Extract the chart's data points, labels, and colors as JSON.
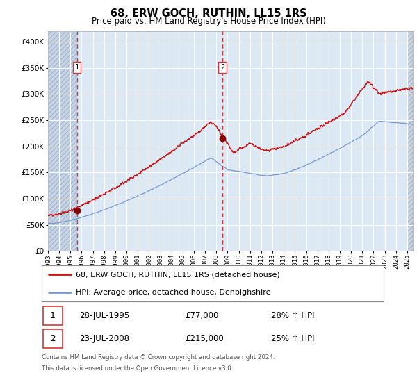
{
  "title": "68, ERW GOCH, RUTHIN, LL15 1RS",
  "subtitle": "Price paid vs. HM Land Registry's House Price Index (HPI)",
  "legend_line1": "68, ERW GOCH, RUTHIN, LL15 1RS (detached house)",
  "legend_line2": "HPI: Average price, detached house, Denbighshire",
  "annotation1_label": "1",
  "annotation1_date": "28-JUL-1995",
  "annotation1_price": "£77,000",
  "annotation1_hpi": "28% ↑ HPI",
  "annotation2_label": "2",
  "annotation2_date": "23-JUL-2008",
  "annotation2_price": "£215,000",
  "annotation2_hpi": "25% ↑ HPI",
  "footnote1": "Contains HM Land Registry data © Crown copyright and database right 2024.",
  "footnote2": "This data is licensed under the Open Government Licence v3.0.",
  "hpi_color": "#7799cc",
  "price_color": "#cc1111",
  "dot_color": "#880000",
  "vline_color": "#dd3333",
  "plot_bg_color": "#dde8f5",
  "hatch_bg_color": "#c8d4e8",
  "grid_color": "#ffffff",
  "ylim": [
    0,
    420000
  ],
  "yticks": [
    0,
    50000,
    100000,
    150000,
    200000,
    250000,
    300000,
    350000,
    400000
  ],
  "sale1_x": 1995.57,
  "sale1_y": 77000,
  "sale2_x": 2008.55,
  "sale2_y": 215000,
  "xmin": 1993.0,
  "xmax": 2025.5
}
